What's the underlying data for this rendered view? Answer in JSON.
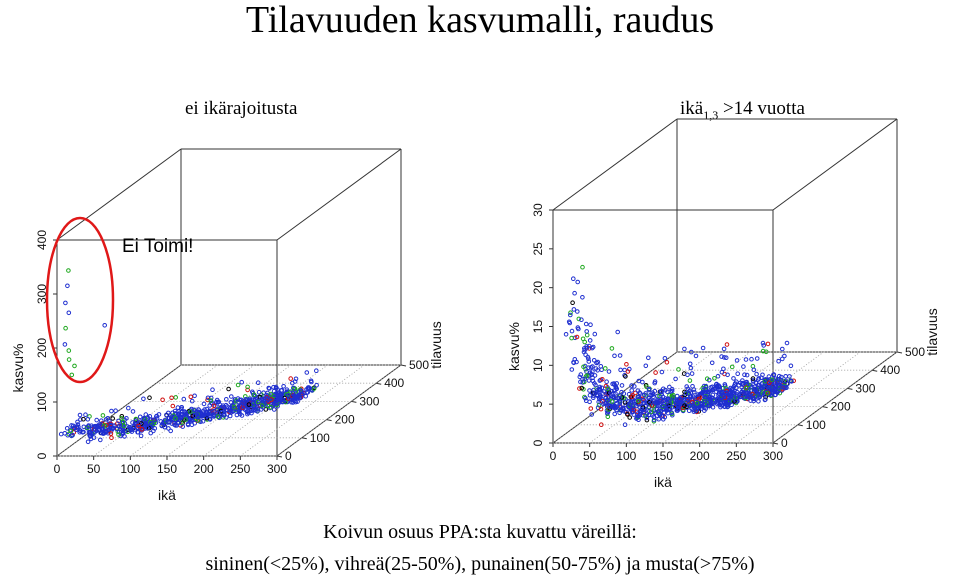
{
  "title": "Tilavuuden kasvumalli, raudus",
  "caption_line1": "Koivun osuus PPA:sta kuvattu väreillä:",
  "caption_line2": "sininen(<25%), vihreä(25-50%), punainen(50-75%) ja musta(>75%)",
  "colors": {
    "sininen": "#1f2fd0",
    "vihrea": "#1fa81f",
    "punainen": "#d01010",
    "musta": "#000000",
    "highlight": "#e01818"
  },
  "chart_data": [
    {
      "type": "scatter",
      "subtitle": "ei ikärajoitusta",
      "annotation": "Ei Toimi!",
      "xlabel": "ikä",
      "ylabel": "kasvu%",
      "zlabel": "tilavuus",
      "xlim": [
        0,
        300
      ],
      "ylim": [
        0,
        400
      ],
      "zlim": [
        0,
        500
      ],
      "xticks": [
        "0",
        "50",
        "100",
        "150",
        "200",
        "250",
        "300"
      ],
      "yticks": [
        "0",
        "100",
        "200",
        "300",
        "400"
      ],
      "zticks": [
        "0",
        "100",
        "200",
        "300",
        "400",
        "500"
      ],
      "outliers": [
        {
          "x": 2,
          "y": 330,
          "z": 40
        },
        {
          "x": 4,
          "y": 305,
          "z": 30
        },
        {
          "x": 3,
          "y": 275,
          "z": 25
        },
        {
          "x": 6,
          "y": 255,
          "z": 30
        },
        {
          "x": 5,
          "y": 230,
          "z": 20
        },
        {
          "x": 38,
          "y": 215,
          "z": 80
        },
        {
          "x": 4,
          "y": 200,
          "z": 20
        },
        {
          "x": 6,
          "y": 185,
          "z": 30
        },
        {
          "x": 8,
          "y": 170,
          "z": 25
        },
        {
          "x": 12,
          "y": 155,
          "z": 35
        },
        {
          "x": 10,
          "y": 140,
          "z": 30
        }
      ]
    },
    {
      "type": "scatter",
      "subtitle_main": "ikä",
      "subtitle_sub": "1,3",
      "subtitle_rest": " >14 vuotta",
      "xlabel": "ikä",
      "ylabel": "kasvu%",
      "zlabel": "tilavuus",
      "xlim": [
        0,
        300
      ],
      "ylim": [
        0,
        30
      ],
      "zlim": [
        0,
        500
      ],
      "xticks": [
        "0",
        "50",
        "100",
        "150",
        "200",
        "250",
        "300"
      ],
      "yticks": [
        "0",
        "5",
        "10",
        "15",
        "20",
        "25",
        "30"
      ],
      "zticks": [
        "0",
        "100",
        "200",
        "300",
        "400",
        "500"
      ]
    }
  ]
}
